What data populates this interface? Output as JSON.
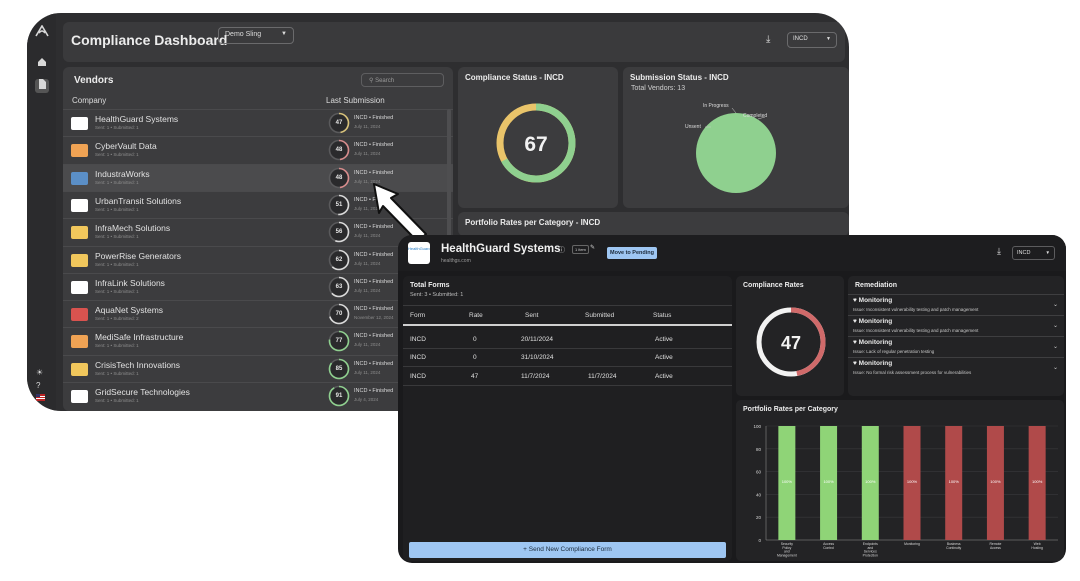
{
  "dashboard": {
    "title": "Compliance Dashboard",
    "org_select": "Demo Sling",
    "form_select": "INCD",
    "download_icon": "download-icon"
  },
  "vendors": {
    "heading": "Vendors",
    "search_placeholder": "Search",
    "col_company": "Company",
    "col_last": "Last Submission",
    "rows": [
      {
        "name": "HealthGuard Systems",
        "sub": "Sent: 1 • Submitted: 1",
        "score": "47",
        "status": "INCD • Finished",
        "date": "July 11, 2024",
        "logo_color": "#ffffff",
        "ring_color": "#d8c27a",
        "highlight": false
      },
      {
        "name": "CyberVault Data",
        "sub": "Sent: 1 • Submitted: 1",
        "score": "48",
        "status": "INCD • Finished",
        "date": "July 11, 2024",
        "logo_color": "#f0a354",
        "ring_color": "#d88c8c",
        "highlight": false
      },
      {
        "name": "IndustraWorks",
        "sub": "Sent: 1 • Submitted: 1",
        "score": "48",
        "status": "INCD • Finished",
        "date": "July 11, 2024",
        "logo_color": "#5b8fc7",
        "ring_color": "#d88c8c",
        "highlight": true
      },
      {
        "name": "UrbanTransit Solutions",
        "sub": "Sent: 1 • Submitted: 1",
        "score": "51",
        "status": "INCD • Finished",
        "date": "July 11, 2024",
        "logo_color": "#ffffff",
        "ring_color": "#d9d9d9",
        "highlight": false
      },
      {
        "name": "InfraMech Solutions",
        "sub": "Sent: 1 • Submitted: 1",
        "score": "56",
        "status": "INCD • Finished",
        "date": "July 11, 2024",
        "logo_color": "#f1c75c",
        "ring_color": "#d9d9d9",
        "highlight": false
      },
      {
        "name": "PowerRise Generators",
        "sub": "Sent: 1 • Submitted: 1",
        "score": "62",
        "status": "INCD • Finished",
        "date": "July 11, 2024",
        "logo_color": "#f1c75c",
        "ring_color": "#d9d9d9",
        "highlight": false
      },
      {
        "name": "InfraLink Solutions",
        "sub": "Sent: 1 • Submitted: 1",
        "score": "63",
        "status": "INCD • Finished",
        "date": "July 11, 2024",
        "logo_color": "#ffffff",
        "ring_color": "#d9d9d9",
        "highlight": false
      },
      {
        "name": "AquaNet Systems",
        "sub": "Sent: 1 • Submitted: 2",
        "score": "70",
        "status": "INCD • Finished",
        "date": "November 12, 2024",
        "logo_color": "#d9534f",
        "ring_color": "#d9d9d9",
        "highlight": false
      },
      {
        "name": "MediSafe Infrastructure",
        "sub": "Sent: 1 • Submitted: 1",
        "score": "77",
        "status": "INCD • Finished",
        "date": "July 11, 2024",
        "logo_color": "#f0a354",
        "ring_color": "#8fd08f",
        "highlight": false
      },
      {
        "name": "CrisisTech Innovations",
        "sub": "Sent: 1 • Submitted: 1",
        "score": "85",
        "status": "INCD • Finished",
        "date": "July 11, 2024",
        "logo_color": "#f1c75c",
        "ring_color": "#8fd08f",
        "highlight": false
      },
      {
        "name": "GridSecure Technologies",
        "sub": "Sent: 1 • Submitted: 1",
        "score": "91",
        "status": "INCD • Finished",
        "date": "July 4, 2024",
        "logo_color": "#ffffff",
        "ring_color": "#8fd08f",
        "highlight": false
      }
    ]
  },
  "compliance_status": {
    "heading": "Compliance Status - INCD",
    "score": "67",
    "score_fraction": 0.67
  },
  "submission_status": {
    "heading": "Submission Status - INCD",
    "total": "Total Vendors: 13",
    "labels": {
      "in_progress": "In Progress",
      "completed": "Completed",
      "unsent": "Unsent"
    }
  },
  "portfolio_back": {
    "heading": "Portfolio Rates per Category - INCD"
  },
  "detail": {
    "logo_text": "HealthGuard",
    "title": "HealthGuard Systems",
    "url": "healthgs.com",
    "tag": "1 item",
    "move_button": "Move to Pending",
    "form_select": "INCD",
    "total_forms_heading": "Total Forms",
    "total_forms_sub": "Sent: 3 • Submitted: 1",
    "table_headers": [
      "Form",
      "Rate",
      "Sent",
      "Submitted",
      "Status"
    ],
    "table_rows": [
      [
        "INCD",
        "0",
        "20/11/2024",
        "",
        "Active"
      ],
      [
        "INCD",
        "0",
        "31/10/2024",
        "",
        "Active"
      ],
      [
        "INCD",
        "47",
        "11/7/2024",
        "11/7/2024",
        "Active"
      ]
    ],
    "send_button": "+ Send New Compliance Form",
    "compliance_rates_heading": "Compliance Rates",
    "compliance_rates_value": "47",
    "compliance_rates_fraction": 0.47,
    "remediation_heading": "Remediation",
    "remediation_items": [
      {
        "title": "Monitoring",
        "issue": "Issue: Inconsistent vulnerability testing and patch management"
      },
      {
        "title": "Monitoring",
        "issue": "Issue: Inconsistent vulnerability testing and patch management"
      },
      {
        "title": "Monitoring",
        "issue": "Issue: Lack of regular penetration testing"
      },
      {
        "title": "Monitoring",
        "issue": "Issue: No formal risk assessment process for vulnerabilities"
      }
    ],
    "portfolio_heading": "Portfolio Rates per Category"
  },
  "chart_data": {
    "type": "bar",
    "categories": [
      "Security Policy and Management",
      "Access Control",
      "Endpoints and Services Protection",
      "Monitoring",
      "Business Continuity",
      "Remote Access",
      "Web Hosting"
    ],
    "values": [
      100,
      100,
      100,
      100,
      100,
      100,
      100
    ],
    "data_labels": [
      "100%",
      "100%",
      "100%",
      "100%",
      "100%",
      "100%",
      "100%"
    ],
    "bar_colors": [
      "#8fd477",
      "#8fd477",
      "#8fd477",
      "#b04a4a",
      "#b04a4a",
      "#b04a4a",
      "#b04a4a"
    ],
    "yticks": [
      "0",
      "20",
      "40",
      "60",
      "80",
      "100"
    ],
    "ylim": [
      0,
      100
    ],
    "grid": true
  },
  "colors": {
    "accent": "#9ec6f2",
    "good": "#8fd477",
    "bad": "#b04a4a"
  }
}
